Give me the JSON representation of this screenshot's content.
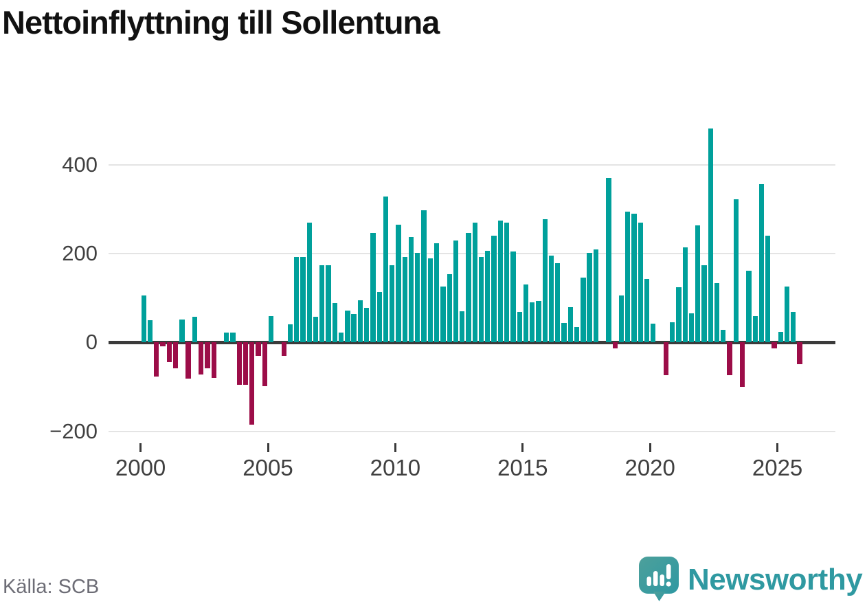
{
  "title": "Nettoinflyttning till Sollentuna",
  "source": "Källa: SCB",
  "logo": {
    "text": "Newsworthy"
  },
  "colors": {
    "positive": "#00a09b",
    "negative": "#9c0d48",
    "axis": "#3b3b3b",
    "grid": "#e4e4e4",
    "tick_label": "#404040",
    "title": "#111111",
    "source": "#6d6d76",
    "logo_teal": "#2f99a1"
  },
  "chart_data": {
    "type": "bar",
    "title": "Nettoinflyttning till Sollentuna",
    "period": "quarterly",
    "start_year": 2000,
    "x_ticks": [
      2000,
      2005,
      2010,
      2015,
      2020,
      2025
    ],
    "x_tick_labels": [
      "2000",
      "2005",
      "2010",
      "2015",
      "2020",
      "2025"
    ],
    "y_ticks": [
      400,
      200,
      0,
      -200
    ],
    "y_tick_labels": [
      "400",
      "200",
      "0",
      "−200"
    ],
    "ylim": [
      -230,
      510
    ],
    "grid": "horizontal",
    "legend": "none",
    "values": [
      106,
      50,
      -77,
      -9,
      -44,
      -58,
      51,
      -81,
      57,
      -72,
      -59,
      -80,
      0,
      22,
      22,
      -95,
      -96,
      -185,
      -31,
      -99,
      59,
      0,
      -31,
      41,
      193,
      192,
      270,
      58,
      174,
      174,
      89,
      22,
      72,
      64,
      95,
      78,
      247,
      113,
      328,
      174,
      265,
      192,
      237,
      202,
      297,
      190,
      223,
      126,
      153,
      230,
      70,
      246,
      270,
      192,
      206,
      240,
      275,
      269,
      205,
      69,
      131,
      91,
      94,
      278,
      195,
      179,
      44,
      80,
      35,
      146,
      201,
      209,
      0,
      370,
      -13,
      106,
      294,
      290,
      270,
      143,
      43,
      0,
      -74,
      45,
      124,
      214,
      65,
      263,
      174,
      482,
      134,
      28,
      -74,
      322,
      -100,
      162,
      60,
      356,
      240,
      -13,
      24,
      126,
      69,
      -49
    ]
  }
}
